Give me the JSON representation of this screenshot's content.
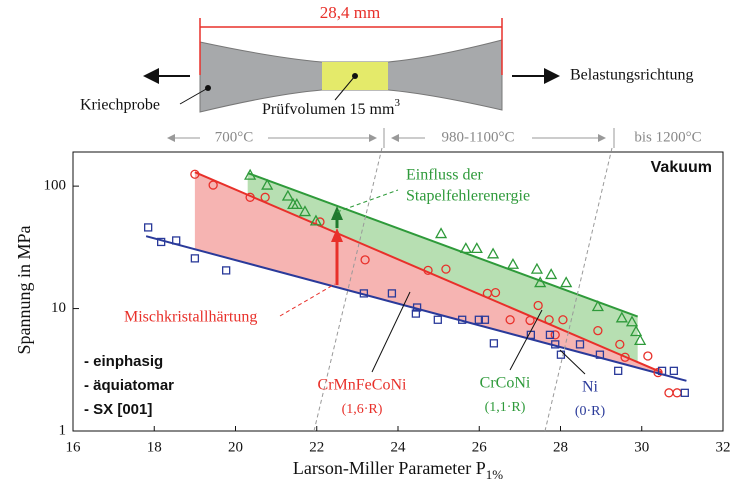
{
  "specimen": {
    "length": "28,4 mm",
    "left_label": "Kriechprobe",
    "volume_label": "Prüfvolumen 15 mm",
    "volume_exp": "3",
    "direction_label": "Belastungsrichtung"
  },
  "chart_data": {
    "type": "scatter",
    "xlabel": "Larson-Miller Parameter P",
    "xlabel_sub": "1%",
    "ylabel": "Spannung in MPa",
    "xlim": [
      16,
      32
    ],
    "xticks": [
      16,
      18,
      20,
      22,
      24,
      26,
      28,
      30,
      32
    ],
    "ylim": [
      1,
      190
    ],
    "yticks": [
      1,
      10,
      100
    ],
    "log_y": true,
    "grid": false,
    "regions": [
      "700°C",
      "980-1100°C",
      "bis 1200°C"
    ],
    "series": [
      {
        "name": "CrMnFeCoNi",
        "color": "#e8302a",
        "marker": "circle",
        "x": [
          19.0,
          19.45,
          20.36,
          20.73,
          22.08,
          23.19,
          24.74,
          25.18,
          26.2,
          26.4,
          26.76,
          27.25,
          27.45,
          27.72,
          27.87,
          28.06,
          28.92,
          29.46,
          29.59,
          30.15,
          30.4,
          30.67,
          30.87
        ],
        "values": [
          125,
          102,
          81,
          81,
          51,
          25,
          20.5,
          21,
          13.3,
          13.5,
          8.1,
          8,
          10.6,
          8.1,
          6.1,
          8.1,
          6.6,
          5.1,
          4.0,
          4.1,
          3.0,
          2.05,
          2.05
        ]
      },
      {
        "name": "CrCoNi",
        "color": "#2e9a3a",
        "marker": "triangle",
        "x": [
          20.36,
          20.78,
          21.29,
          21.42,
          21.51,
          21.71,
          21.98,
          25.06,
          25.67,
          25.94,
          26.34,
          26.83,
          27.42,
          27.77,
          28.14,
          27.5,
          28.92,
          29.51,
          29.76,
          29.86,
          29.96
        ],
        "values": [
          123,
          102,
          83,
          71,
          71,
          62,
          52,
          41,
          31,
          31,
          28,
          23,
          21,
          19,
          16.3,
          16.3,
          10.4,
          8.4,
          7.8,
          6.5,
          5.5
        ]
      },
      {
        "name": "Ni",
        "color": "#2a3a9a",
        "marker": "square",
        "x": [
          17.85,
          18.17,
          18.54,
          19.0,
          19.77,
          23.16,
          23.85,
          24.47,
          24.44,
          24.98,
          25.58,
          25.99,
          26.14,
          26.36,
          27.27,
          27.74,
          27.87,
          28.01,
          28.48,
          28.97,
          29.42,
          30.5,
          30.79,
          31.06
        ],
        "values": [
          46,
          35,
          36,
          25.7,
          20.5,
          13.3,
          13.3,
          10.2,
          9.1,
          8.1,
          8.1,
          8.1,
          8.1,
          5.2,
          6.1,
          6.1,
          5.1,
          4.2,
          5.1,
          4.2,
          3.1,
          3.1,
          3.1,
          2.05
        ]
      }
    ],
    "fit_lines": [
      {
        "color": "#e8302a",
        "area_color": "#f6b4b2",
        "x": [
          19.0,
          30.5
        ],
        "y": [
          130,
          3.0
        ]
      },
      {
        "color": "#2e9a3a",
        "area_color": "#b7dfb2",
        "x": [
          20.3,
          29.9
        ],
        "y": [
          128,
          8.6
        ]
      },
      {
        "color": "#2a3a9a",
        "x": [
          17.8,
          31.1
        ],
        "y": [
          39,
          2.57
        ]
      }
    ],
    "annotations": [
      {
        "text": "Vakuum"
      },
      {
        "text": "Einfluss der",
        "color": "#2e9a3a"
      },
      {
        "text": "Stapelfehlerenergie",
        "color": "#2e9a3a"
      },
      {
        "text": "Mischkristallhärtung",
        "color": "#e8302a"
      },
      {
        "text": "CrMnFeCoNi",
        "color": "#e8302a"
      },
      {
        "text": "(1,6·R)",
        "color": "#e8302a"
      },
      {
        "text": "CrCoNi",
        "color": "#2e9a3a"
      },
      {
        "text": "(1,1·R)",
        "color": "#2e9a3a"
      },
      {
        "text": "Ni",
        "color": "#2a3a9a"
      },
      {
        "text": "(0·R)",
        "color": "#2a3a9a"
      },
      {
        "text": "- einphasig"
      },
      {
        "text": "- äquiatomar"
      },
      {
        "text": "- SX [001]"
      }
    ]
  }
}
